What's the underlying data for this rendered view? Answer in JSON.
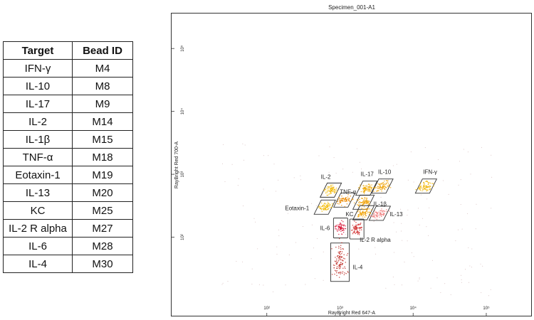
{
  "table": {
    "headers": [
      "Target",
      "Bead ID"
    ],
    "rows": [
      [
        "IFN-γ",
        "M4"
      ],
      [
        "IL-10",
        "M8"
      ],
      [
        "IL-17",
        "M9"
      ],
      [
        "IL-2",
        "M14"
      ],
      [
        "IL-1β",
        "M15"
      ],
      [
        "TNF-α",
        "M18"
      ],
      [
        "Eotaxin-1",
        "M19"
      ],
      [
        "IL-13",
        "M20"
      ],
      [
        "KC",
        "M25"
      ],
      [
        "IL-2 R alpha",
        "M27"
      ],
      [
        "IL-6",
        "M28"
      ],
      [
        "IL-4",
        "M30"
      ]
    ]
  },
  "chart_data": {
    "type": "scatter",
    "title": "Specimen_001-A1",
    "xlabel": "RayBright Red 647-A",
    "ylabel": "RayBright Red 700-A",
    "xscale": "log",
    "yscale": "log",
    "xticks": [
      {
        "value": 100,
        "label": "10²"
      },
      {
        "value": 1000,
        "label": "10³"
      },
      {
        "value": 10000,
        "label": "10⁴"
      },
      {
        "value": 100000,
        "label": "10⁵"
      }
    ],
    "yticks": [
      {
        "value": 100,
        "label": "10²"
      },
      {
        "value": 1000,
        "label": "10³"
      },
      {
        "value": 10000,
        "label": "10⁴"
      },
      {
        "value": 100000,
        "label": "10⁵"
      }
    ],
    "xlim": [
      10,
      300000
    ],
    "ylim": [
      10,
      300000
    ],
    "grid": false,
    "populations": [
      {
        "name": "IFN-γ",
        "x": 15000,
        "y": 650,
        "color": "#f0b400"
      },
      {
        "name": "IL-10",
        "x": 3800,
        "y": 650,
        "color": "#f0a000"
      },
      {
        "name": "IL-17",
        "x": 2300,
        "y": 600,
        "color": "#f0a800"
      },
      {
        "name": "IL-2",
        "x": 750,
        "y": 560,
        "color": "#f2b800"
      },
      {
        "name": "TNF-α",
        "x": 1150,
        "y": 390,
        "color": "#ec8a00"
      },
      {
        "name": "IL-1β",
        "x": 2100,
        "y": 360,
        "color": "#f0a000"
      },
      {
        "name": "Eotaxin-1",
        "x": 620,
        "y": 300,
        "color": "#f2b800"
      },
      {
        "name": "KC",
        "x": 2100,
        "y": 245,
        "color": "#f0a000"
      },
      {
        "name": "IL-13",
        "x": 3500,
        "y": 240,
        "color": "#f08080"
      },
      {
        "name": "IL-6",
        "x": 1020,
        "y": 140,
        "color": "#d81b3c"
      },
      {
        "name": "IL-2 R alpha",
        "x": 1700,
        "y": 135,
        "color": "#d02a2a"
      },
      {
        "name": "IL-4",
        "x": 1000,
        "y": 40,
        "color": "#c0302a"
      }
    ]
  }
}
